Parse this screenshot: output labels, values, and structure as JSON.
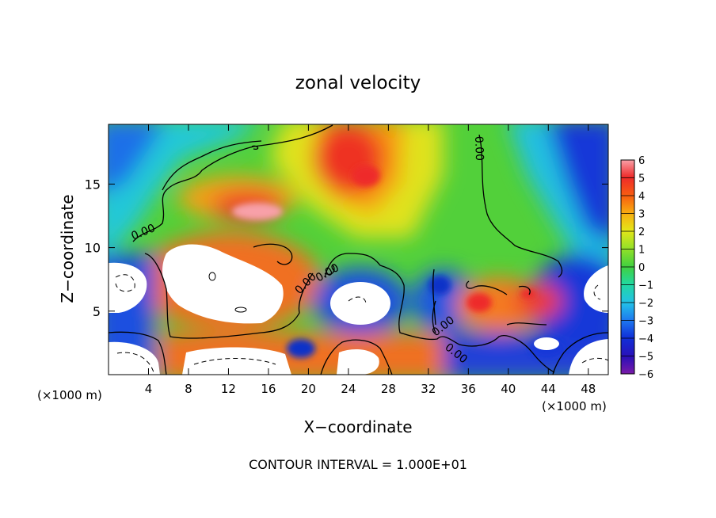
{
  "chart_data": {
    "type": "heatmap",
    "title": "zonal velocity",
    "xlabel": "X−coordinate",
    "ylabel": "Z−coordinate",
    "x_unit_left": "(×1000 m)",
    "x_unit_right": "(×1000 m)",
    "xlim": [
      0,
      50
    ],
    "ylim": [
      0,
      19.7
    ],
    "x_ticks": [
      4,
      8,
      12,
      16,
      20,
      24,
      28,
      32,
      36,
      40,
      44,
      48
    ],
    "y_ticks": [
      5,
      10,
      15
    ],
    "colorbar_range": [
      -6,
      6
    ],
    "colorbar_ticks": [
      "6",
      "5",
      "4",
      "3",
      "2",
      "1",
      "0",
      "−1",
      "−2",
      "−3",
      "−4",
      "−5",
      "−6"
    ],
    "contour_labels": [
      "0.00",
      "0.00",
      "0.00",
      "0.00",
      "0.00",
      "0.00"
    ],
    "footer": "CONTOUR INTERVAL = 1.000E+01",
    "colors": {
      "cb_stops": [
        "#7a1aa8",
        "#2a10b8",
        "#1030d8",
        "#1e78f0",
        "#22c0e8",
        "#22d8a0",
        "#40d040",
        "#8ee02a",
        "#e4e618",
        "#f8ae10",
        "#f86010",
        "#ee2a2a",
        "#f8a0a8"
      ]
    }
  }
}
